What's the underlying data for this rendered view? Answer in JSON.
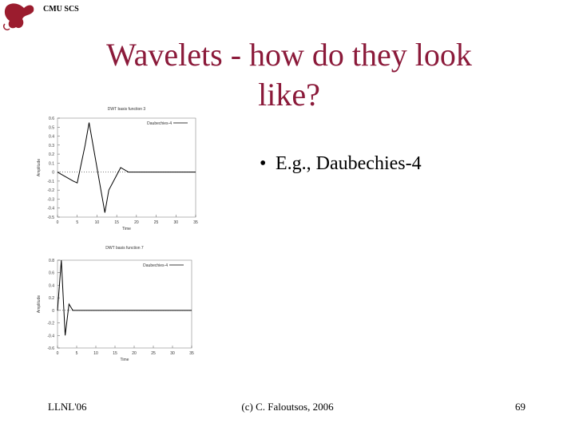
{
  "header": {
    "logo_text": "CMU SCS"
  },
  "slide": {
    "title_lines": [
      "Wavelets - how do they look",
      "like?"
    ],
    "bullets": [
      "E.g., Daubechies-4"
    ]
  },
  "figures": [
    {
      "type": "line",
      "title": "DWT basis function 3",
      "x_label": "Time",
      "y_label": "Amplitude",
      "series": [
        {
          "name": "Daubechies-4",
          "color": "#000000",
          "x": [
            0,
            4,
            5,
            7,
            8,
            12,
            13,
            16,
            18,
            35
          ],
          "values": [
            0,
            -0.1,
            -0.12,
            0.3,
            0.55,
            -0.45,
            -0.2,
            0.05,
            0,
            0
          ]
        }
      ],
      "xlim": [
        0,
        35
      ],
      "xticks": [
        0,
        5,
        10,
        15,
        20,
        25,
        30,
        35
      ],
      "ylim": [
        -0.5,
        0.6
      ],
      "yticks": [
        -0.5,
        -0.4,
        -0.3,
        -0.2,
        -0.1,
        0,
        0.1,
        0.2,
        0.3,
        0.4,
        0.5,
        0.6
      ]
    },
    {
      "type": "line",
      "title": "DWT basis function 7",
      "x_label": "Time",
      "y_label": "Amplitude",
      "series": [
        {
          "name": "Daubechies-4",
          "color": "#000000",
          "x": [
            0,
            1,
            2,
            3,
            4,
            35
          ],
          "values": [
            0,
            0.8,
            -0.4,
            0.1,
            0,
            0
          ]
        }
      ],
      "xlim": [
        0,
        35
      ],
      "xticks": [
        0,
        5,
        10,
        15,
        20,
        25,
        30,
        35
      ],
      "ylim": [
        -0.6,
        0.8
      ],
      "yticks": [
        -0.6,
        -0.4,
        -0.2,
        0,
        0.2,
        0.4,
        0.6,
        0.8
      ]
    }
  ],
  "footer": {
    "left": "LLNL'06",
    "center": "(c) C. Faloutsos, 2006",
    "right": "69"
  }
}
